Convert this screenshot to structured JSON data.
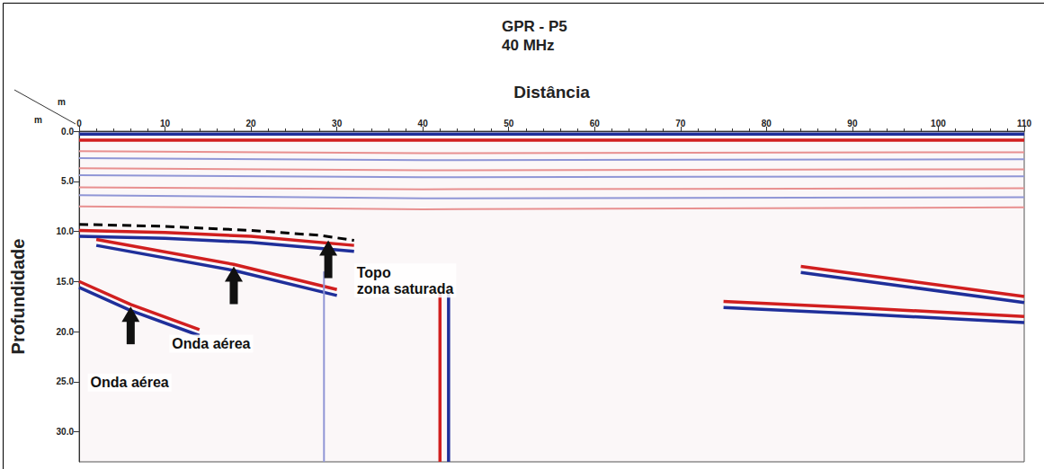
{
  "chart_data": {
    "type": "radargram",
    "title": "GPR - P5",
    "subtitle": "40 MHz",
    "x_label": "Distância",
    "y_label": "Profundidade",
    "x_unit": "m",
    "y_unit": "m",
    "xlim": [
      0,
      110
    ],
    "xticks": [
      0,
      10,
      20,
      30,
      40,
      50,
      60,
      70,
      80,
      90,
      100,
      110
    ],
    "ylim": [
      0,
      33
    ],
    "yticks": [
      {
        "value": 0,
        "label": "0.0"
      },
      {
        "value": 5,
        "label": "5.0"
      },
      {
        "value": 10,
        "label": "10.0"
      },
      {
        "value": 15,
        "label": "15.0"
      },
      {
        "value": 20,
        "label": "20.0"
      },
      {
        "value": 25,
        "label": "25.0"
      },
      {
        "value": 30,
        "label": "30.0"
      }
    ],
    "grid": false,
    "series": [
      {
        "type": "line",
        "color": "#1f2f9a",
        "x": [
          0,
          110
        ],
        "values": [
          0.3,
          0.3
        ]
      },
      {
        "type": "line",
        "color": "#d11f1f",
        "x": [
          0,
          110
        ],
        "values": [
          0.9,
          0.9
        ]
      },
      {
        "type": "line",
        "color": "#e89090",
        "x": [
          0,
          40,
          110
        ],
        "values": [
          2.0,
          2.2,
          2.1
        ]
      },
      {
        "type": "line",
        "color": "#9096d6",
        "x": [
          0,
          40,
          110
        ],
        "values": [
          2.7,
          2.9,
          2.8
        ]
      },
      {
        "type": "line",
        "color": "#e89090",
        "x": [
          0,
          40,
          110
        ],
        "values": [
          3.7,
          3.9,
          3.8
        ]
      },
      {
        "type": "line",
        "color": "#9096d6",
        "x": [
          0,
          40,
          110
        ],
        "values": [
          4.4,
          4.6,
          4.5
        ]
      },
      {
        "type": "line",
        "color": "#e89090",
        "x": [
          0,
          40,
          110
        ],
        "values": [
          5.6,
          5.8,
          5.7
        ]
      },
      {
        "type": "line",
        "color": "#9096d6",
        "x": [
          0,
          40,
          110
        ],
        "values": [
          6.4,
          6.7,
          6.6
        ]
      },
      {
        "type": "line",
        "color": "#e89090",
        "x": [
          0,
          40,
          110
        ],
        "values": [
          7.5,
          7.8,
          7.6
        ]
      },
      {
        "type": "line",
        "color": "#d11f1f",
        "x": [
          0,
          10,
          20,
          32
        ],
        "values": [
          9.9,
          10.1,
          10.5,
          11.4
        ]
      },
      {
        "type": "line",
        "color": "#1f2f9a",
        "x": [
          0,
          10,
          20,
          32
        ],
        "values": [
          10.5,
          10.7,
          11.1,
          12.0
        ]
      },
      {
        "type": "line",
        "color": "#d11f1f",
        "x": [
          2,
          18,
          30
        ],
        "values": [
          10.8,
          13.3,
          15.8
        ]
      },
      {
        "type": "line",
        "color": "#1f2f9a",
        "x": [
          2,
          18,
          30
        ],
        "values": [
          11.4,
          13.9,
          16.4
        ]
      },
      {
        "type": "line",
        "color": "#d11f1f",
        "x": [
          0,
          6,
          14
        ],
        "values": [
          15.0,
          17.3,
          19.8
        ]
      },
      {
        "type": "line",
        "color": "#1f2f9a",
        "x": [
          0,
          6,
          14
        ],
        "values": [
          15.6,
          17.9,
          20.4
        ]
      },
      {
        "type": "line",
        "color": "#d11f1f",
        "x": [
          84,
          97,
          110
        ],
        "values": [
          13.5,
          15.0,
          16.5
        ]
      },
      {
        "type": "line",
        "color": "#1f2f9a",
        "x": [
          84,
          97,
          110
        ],
        "values": [
          14.1,
          15.6,
          17.1
        ]
      },
      {
        "type": "line",
        "color": "#d11f1f",
        "x": [
          75,
          90,
          110
        ],
        "values": [
          17.0,
          17.6,
          18.5
        ]
      },
      {
        "type": "line",
        "color": "#1f2f9a",
        "x": [
          75,
          90,
          110
        ],
        "values": [
          17.6,
          18.2,
          19.1
        ]
      },
      {
        "type": "line",
        "color": "#d11f1f",
        "x": [
          42,
          42
        ],
        "values": [
          16,
          33
        ]
      },
      {
        "type": "line",
        "color": "#1f2f9a",
        "x": [
          43,
          43
        ],
        "values": [
          16,
          33
        ]
      },
      {
        "type": "line",
        "color": "#9096d6",
        "x": [
          28.5,
          28.5
        ],
        "values": [
          14,
          33
        ]
      },
      {
        "type": "line",
        "color": "#000000",
        "line_style": "dashed",
        "x": [
          0,
          10,
          20,
          28,
          32
        ],
        "values": [
          9.3,
          9.5,
          9.9,
          10.4,
          10.9
        ]
      }
    ],
    "annotations": [
      {
        "text": [
          "Onda aérea"
        ],
        "x": 6,
        "y": 17.5,
        "label_x": 1,
        "label_y": 24.2
      },
      {
        "text": [
          "Onda aérea"
        ],
        "x": 18,
        "y": 13.5,
        "label_x": 10.5,
        "label_y": 20.3
      },
      {
        "text": [
          "Topo",
          "zona saturada"
        ],
        "x": 29,
        "y": 10.9,
        "label_x": 32,
        "label_y": 13.2
      }
    ]
  }
}
